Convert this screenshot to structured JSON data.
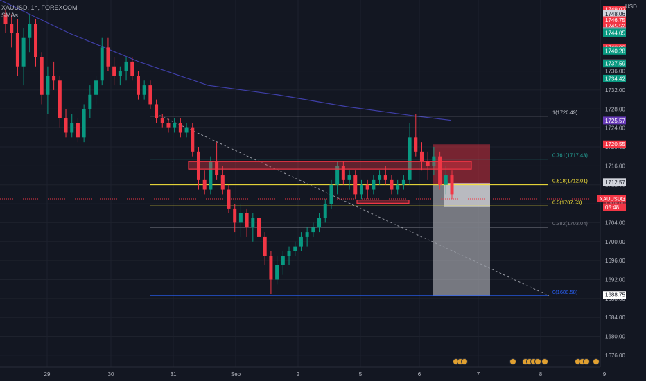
{
  "header": {
    "symbol": "XAUUSD, 1h, FOREXCOM",
    "indicator": "SMAs"
  },
  "currency": "USD",
  "chart_data": {
    "type": "candlestick",
    "price_range": [
      1673.5,
      1751
    ],
    "x_ticks": [
      "29",
      "30",
      "31",
      "Sep",
      "2",
      "5",
      "6",
      "7",
      "8",
      "9"
    ],
    "y_ticks": [
      "1736.00",
      "1732.00",
      "1728.00",
      "1724.00",
      "1720.00",
      "1716.00",
      "1712.00",
      "1708.00",
      "1704.00",
      "1700.00",
      "1696.00",
      "1692.00",
      "1688.00",
      "1684.00",
      "1680.00",
      "1676.00"
    ],
    "fib_levels": [
      {
        "label": "1(1726.49)",
        "price": 1726.49,
        "color": "#d1d4dc"
      },
      {
        "label": "0.761(1717.43)",
        "price": 1717.43,
        "color": "#26a69a"
      },
      {
        "label": "0.618(1712.01)",
        "price": 1712.01,
        "color": "#ffeb3b"
      },
      {
        "label": "0.5(1707.53)",
        "price": 1707.53,
        "color": "#ffeb3b"
      },
      {
        "label": "0.382(1703.04)",
        "price": 1703.04,
        "color": "#787b86"
      },
      {
        "label": "0(1688.58)",
        "price": 1688.58,
        "color": "#2962ff"
      }
    ],
    "right_labels": [
      {
        "text": "1749.02",
        "price": 1749.02,
        "bg": "#f23645"
      },
      {
        "text": "1748.06",
        "price": 1748.06,
        "bg": "#d1d4dc"
      },
      {
        "text": "1746.75",
        "price": 1746.75,
        "bg": "#f23645"
      },
      {
        "text": "1745.52",
        "price": 1745.52,
        "bg": "#f23645"
      },
      {
        "text": "1744.48",
        "price": 1744.48,
        "bg": "#9598a1"
      },
      {
        "text": "1744.13",
        "price": 1744.13,
        "bg": "#089981"
      },
      {
        "text": "1744.05",
        "price": 1744.05,
        "bg": "#089981"
      },
      {
        "text": "1740.99",
        "price": 1740.99,
        "bg": "#f23645"
      },
      {
        "text": "1740.28",
        "price": 1740.28,
        "bg": "#089981"
      },
      {
        "text": "1737.66",
        "price": 1737.66,
        "bg": "#9598a1"
      },
      {
        "text": "1737.59",
        "price": 1737.59,
        "bg": "#089981"
      },
      {
        "text": "1734.42",
        "price": 1734.42,
        "bg": "#089981"
      },
      {
        "text": "1725.57",
        "price": 1725.57,
        "bg": "#673ab7"
      },
      {
        "text": "1720.55",
        "price": 1720.55,
        "bg": "#f23645"
      },
      {
        "text": "1712.57",
        "price": 1712.57,
        "bg": "#d1d4dc"
      },
      {
        "text": "1709.03",
        "price": 1709.03,
        "bg": "#f23645"
      },
      {
        "text": "05:48",
        "price": 1707.3,
        "bg": "#f23645"
      },
      {
        "text": "1688.75",
        "price": 1688.75,
        "bg": "#ffffff"
      }
    ],
    "symbol_tag": "XAUUSD",
    "current_price": 1709.03,
    "sma_points": [
      [
        0,
        1751
      ],
      [
        100,
        1744
      ],
      [
        200,
        1738
      ],
      [
        300,
        1733
      ],
      [
        400,
        1731
      ],
      [
        500,
        1728.5
      ],
      [
        600,
        1726.5
      ],
      [
        651,
        1725.6
      ]
    ],
    "trendline": {
      "start": [
        225,
        1727
      ],
      "end": [
        792,
        1688.6
      ]
    },
    "zones": [
      {
        "x": [
          272,
          680
        ],
        "price": [
          1715.3,
          1716.9
        ]
      },
      {
        "x": [
          515,
          590
        ],
        "price": [
          1708.1,
          1708.8
        ]
      }
    ],
    "position": {
      "x": [
        624,
        707
      ],
      "entry": 1712.0,
      "stop": 1720.55,
      "target": 1688.58
    },
    "candles": [
      [
        1748,
        1749,
        1744,
        1746
      ],
      [
        1746,
        1748,
        1741,
        1744
      ],
      [
        1744,
        1747,
        1735,
        1737
      ],
      [
        1737,
        1745,
        1733,
        1743
      ],
      [
        1743,
        1748,
        1740,
        1746
      ],
      [
        1746,
        1747,
        1737,
        1739
      ],
      [
        1739,
        1740,
        1729,
        1731
      ],
      [
        1731,
        1737,
        1727,
        1735
      ],
      [
        1735,
        1738,
        1732,
        1734
      ],
      [
        1734,
        1735,
        1724,
        1726
      ],
      [
        1726,
        1728,
        1722,
        1723
      ],
      [
        1723,
        1727,
        1722,
        1725
      ],
      [
        1725,
        1726,
        1721,
        1722
      ],
      [
        1722,
        1729,
        1721,
        1728
      ],
      [
        1728,
        1733,
        1726,
        1731
      ],
      [
        1731,
        1735,
        1729,
        1734
      ],
      [
        1734,
        1743,
        1733,
        1741
      ],
      [
        1741,
        1743,
        1736,
        1737
      ],
      [
        1737,
        1739,
        1733,
        1735
      ],
      [
        1735,
        1737,
        1733,
        1736
      ],
      [
        1736,
        1739,
        1734,
        1738
      ],
      [
        1738,
        1739,
        1734,
        1735
      ],
      [
        1735,
        1736,
        1730,
        1731
      ],
      [
        1731,
        1734,
        1730,
        1733
      ],
      [
        1733,
        1734,
        1728,
        1729
      ],
      [
        1729,
        1730,
        1725,
        1726
      ],
      [
        1726,
        1727,
        1724,
        1725
      ],
      [
        1725,
        1726,
        1723,
        1724
      ],
      [
        1724,
        1726,
        1723,
        1725
      ],
      [
        1725,
        1726,
        1722,
        1723
      ],
      [
        1723,
        1725,
        1722,
        1724
      ],
      [
        1724,
        1725,
        1718,
        1719
      ],
      [
        1719,
        1720,
        1711,
        1713
      ],
      [
        1713,
        1715,
        1710,
        1711
      ],
      [
        1711,
        1718,
        1710,
        1717
      ],
      [
        1717,
        1721,
        1713,
        1714
      ],
      [
        1714,
        1716,
        1710,
        1711
      ],
      [
        1711,
        1712,
        1706,
        1707
      ],
      [
        1707,
        1708,
        1702,
        1704
      ],
      [
        1704,
        1708,
        1701,
        1706
      ],
      [
        1706,
        1707,
        1701,
        1703
      ],
      [
        1703,
        1706,
        1700,
        1705
      ],
      [
        1705,
        1706,
        1699,
        1701
      ],
      [
        1701,
        1702,
        1695,
        1697
      ],
      [
        1697,
        1698,
        1689,
        1692
      ],
      [
        1692,
        1697,
        1691,
        1695
      ],
      [
        1695,
        1698,
        1693,
        1697
      ],
      [
        1697,
        1699,
        1695,
        1698
      ],
      [
        1698,
        1700,
        1697,
        1699
      ],
      [
        1699,
        1702,
        1698,
        1701
      ],
      [
        1701,
        1703,
        1699,
        1702
      ],
      [
        1702,
        1704,
        1701,
        1703
      ],
      [
        1703,
        1706,
        1702,
        1705
      ],
      [
        1705,
        1709,
        1704,
        1708
      ],
      [
        1708,
        1713,
        1707,
        1712
      ],
      [
        1712,
        1717,
        1710,
        1716
      ],
      [
        1716,
        1717,
        1712,
        1713
      ],
      [
        1713,
        1715,
        1711,
        1714
      ],
      [
        1714,
        1715,
        1709,
        1710
      ],
      [
        1710,
        1713,
        1709,
        1712
      ],
      [
        1712,
        1713,
        1709,
        1711
      ],
      [
        1711,
        1714,
        1710,
        1713
      ],
      [
        1713,
        1715,
        1712,
        1714
      ],
      [
        1714,
        1716,
        1712,
        1713
      ],
      [
        1713,
        1714,
        1710,
        1711
      ],
      [
        1711,
        1713,
        1710,
        1712
      ],
      [
        1712,
        1714,
        1711,
        1713
      ],
      [
        1713,
        1725,
        1712,
        1722
      ],
      [
        1722,
        1727,
        1718,
        1719
      ],
      [
        1719,
        1721,
        1715,
        1717
      ],
      [
        1717,
        1719,
        1713,
        1716
      ],
      [
        1716,
        1720,
        1714,
        1718
      ],
      [
        1718,
        1719,
        1711,
        1712
      ],
      [
        1712,
        1716,
        1710,
        1714
      ],
      [
        1714,
        1715,
        1709,
        1710
      ]
    ]
  }
}
